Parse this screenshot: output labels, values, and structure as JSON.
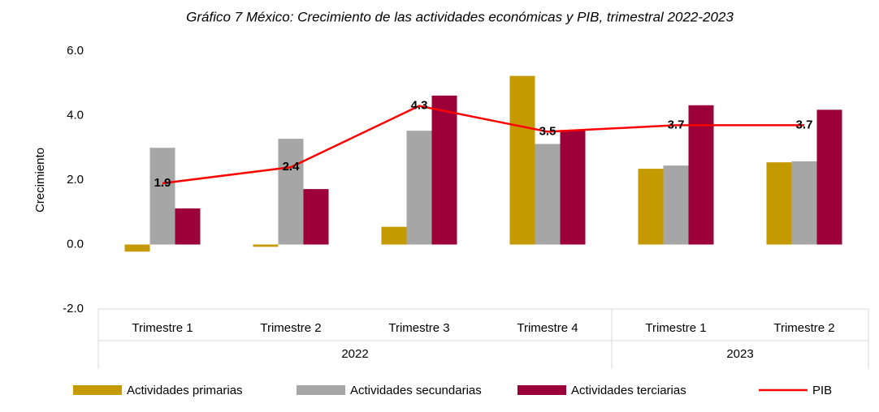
{
  "chart_data": {
    "type": "bar",
    "title": "Gráfico 7 México: Crecimiento de las actividades económicas y PIB, trimestral 2022-2023",
    "y_label": "Crecimiento",
    "categories": [
      "Trimestre 1",
      "Trimestre 2",
      "Trimestre 3",
      "Trimestre 4",
      "Trimestre 1",
      "Trimestre 2"
    ],
    "groups": [
      {
        "name": "2022",
        "count": 4
      },
      {
        "name": "2023",
        "count": 2
      }
    ],
    "series": [
      {
        "name": "Actividades primarias",
        "color": "#c49a00",
        "values": [
          -0.22,
          -0.07,
          0.55,
          5.23,
          2.35,
          2.55
        ]
      },
      {
        "name": "Actividades secundarias",
        "color": "#a6a6a6",
        "values": [
          3.0,
          3.28,
          3.53,
          3.12,
          2.45,
          2.58
        ]
      },
      {
        "name": "Actividades terciarias",
        "color": "#9b0038",
        "values": [
          1.12,
          1.72,
          4.62,
          3.55,
          4.32,
          4.18
        ]
      },
      {
        "name": "PIB",
        "color": "#ff0000",
        "type": "line",
        "values": [
          1.9,
          2.4,
          4.3,
          3.5,
          3.7,
          3.7
        ]
      }
    ],
    "ylim": [
      -2,
      6
    ],
    "yticks": [
      {
        "value": -2,
        "label": "-2.0"
      },
      {
        "value": 0,
        "label": "0.0"
      },
      {
        "value": 2,
        "label": "2.0"
      },
      {
        "value": 4,
        "label": "4.0"
      },
      {
        "value": 6,
        "label": "6.0"
      }
    ],
    "legend": "bottom"
  }
}
